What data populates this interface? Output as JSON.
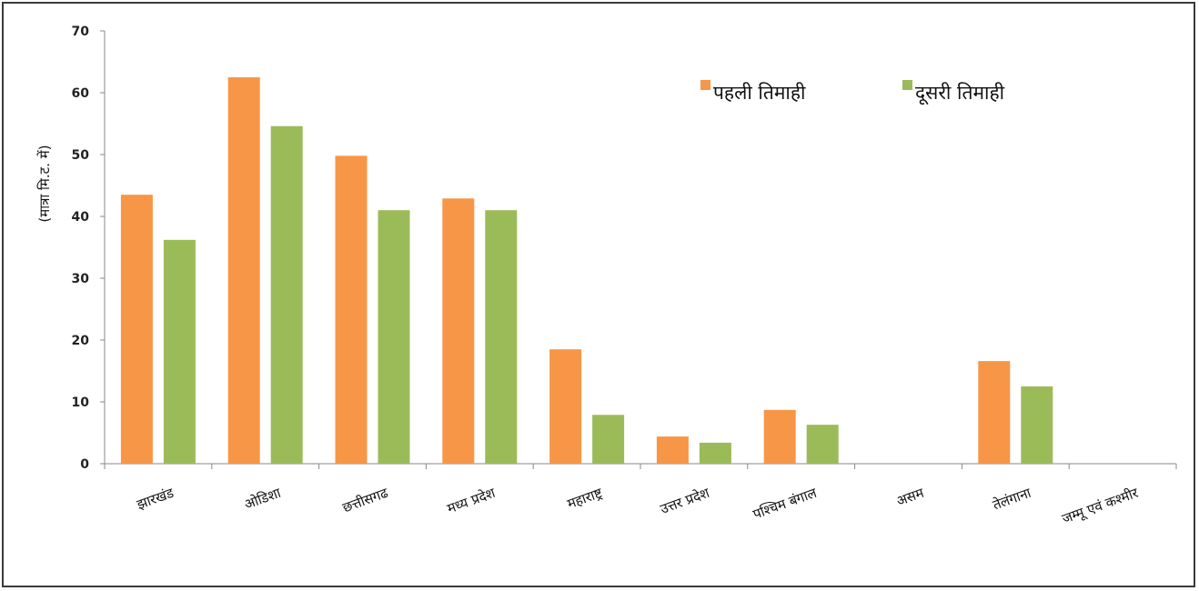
{
  "chart_data": {
    "type": "bar",
    "title": "",
    "xlabel": "",
    "ylabel": "(मात्रा मि.ट. में)",
    "ylim": [
      0,
      70
    ],
    "yticks": [
      0,
      10,
      20,
      30,
      40,
      50,
      60,
      70
    ],
    "grid": false,
    "legend_position": "top-right",
    "categories": [
      "झारखंड",
      "ओडिशा",
      "छत्तीसगढ",
      "मध्य प्रदेश",
      "महाराष्ट्र",
      "उत्तर प्रदेश",
      "पश्चिम बंगाल",
      "असम",
      "तेलंगाना",
      "जम्मू एवं कश्मीर"
    ],
    "series": [
      {
        "name": "पहली तिमाही",
        "color": "#F79646",
        "values": [
          43.5,
          62.5,
          49.8,
          42.9,
          18.5,
          4.4,
          8.7,
          0,
          16.6,
          0
        ]
      },
      {
        "name": "दूसरी तिमाही",
        "color": "#9BBB59",
        "values": [
          36.2,
          54.6,
          41.0,
          41.0,
          7.9,
          3.4,
          6.3,
          0,
          12.5,
          0
        ]
      }
    ]
  }
}
